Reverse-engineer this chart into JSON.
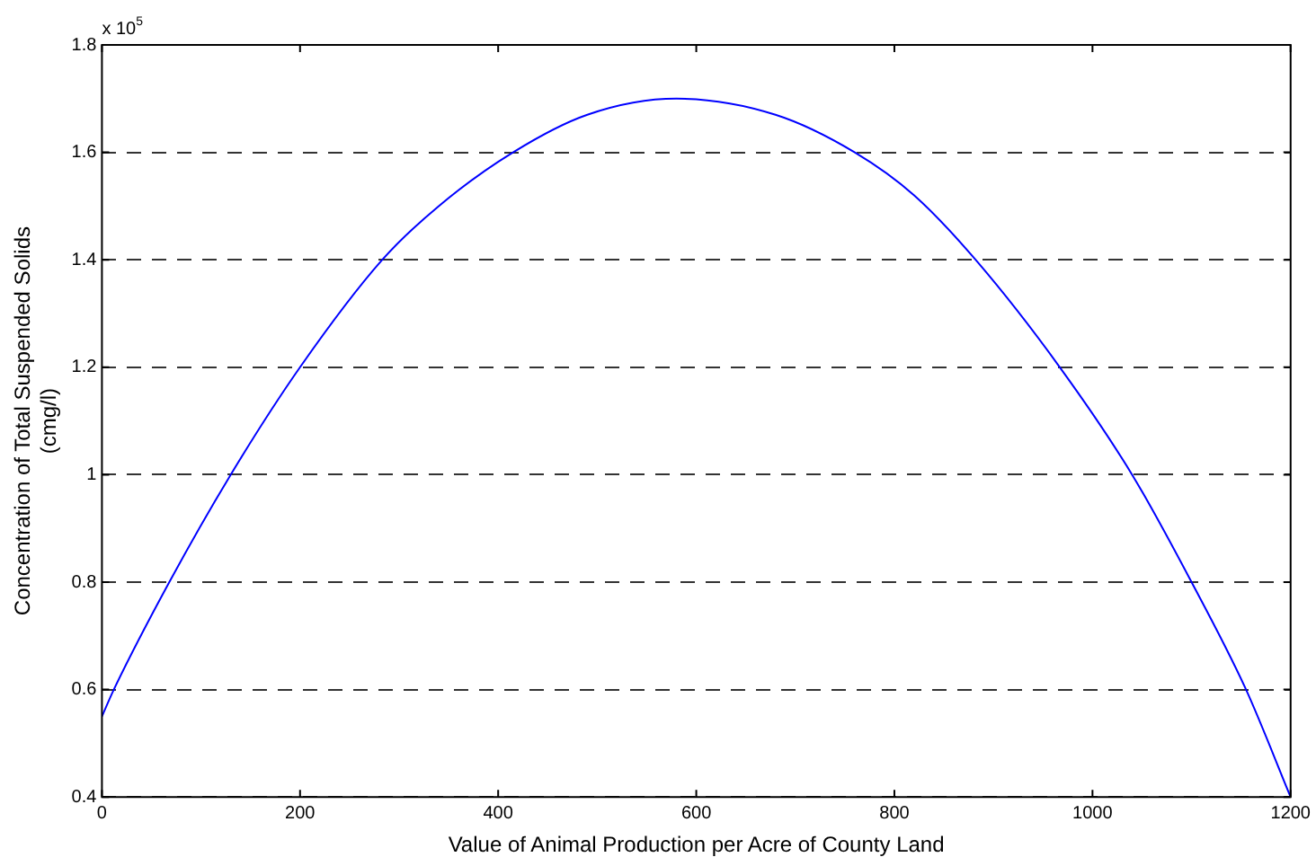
{
  "chart_data": {
    "type": "line",
    "xlabel": "Value of Animal Production per Acre of County Land",
    "ylabel": "Concentration of Total Suspended Solids\n(cmg/l)",
    "annotations": [
      "x 10$^{5}$"
    ],
    "x": [
      0,
      12,
      68,
      130,
      200,
      283,
      340,
      415,
      490,
      580,
      680,
      760,
      820,
      882,
      967,
      1040,
      1100,
      1155,
      1200
    ],
    "series": [
      {
        "color": "#0000ff",
        "values": [
          0.55,
          0.6,
          0.8,
          1.0,
          1.2,
          1.4,
          1.5,
          1.6,
          1.67,
          1.7,
          1.67,
          1.6,
          1.52,
          1.4,
          1.2,
          1.0,
          0.8,
          0.6,
          0.4
        ]
      }
    ],
    "xlim": [
      0,
      1200
    ],
    "xticks": [
      0,
      200,
      400,
      600,
      800,
      1000,
      1200
    ],
    "ylim": [
      0.4,
      1.8
    ],
    "yticks": [
      0.4,
      0.6,
      0.8,
      1,
      1.2,
      1.4,
      1.6,
      1.8
    ],
    "grid": "y",
    "legend": false,
    "marker": "none",
    "line_style": "solid"
  }
}
